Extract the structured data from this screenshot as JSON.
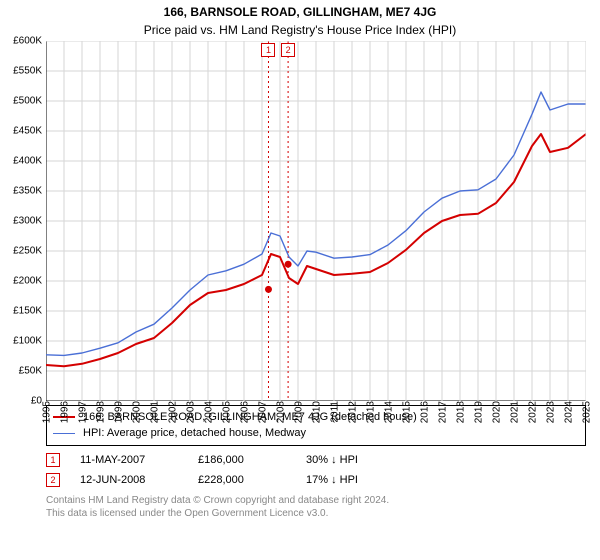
{
  "title": "166, BARNSOLE ROAD, GILLINGHAM, ME7 4JG",
  "subtitle": "Price paid vs. HM Land Registry's House Price Index (HPI)",
  "chart": {
    "type": "line",
    "background_color": "#ffffff",
    "grid_color": "#d6d6d6",
    "axis_color": "#000000",
    "font_size_axis": 10,
    "ylim": [
      0,
      600000
    ],
    "ytick_step": 50000,
    "y_labels": [
      "£0",
      "£50K",
      "£100K",
      "£150K",
      "£200K",
      "£250K",
      "£300K",
      "£350K",
      "£400K",
      "£450K",
      "£500K",
      "£550K",
      "£600K"
    ],
    "xlim": [
      1995,
      2025
    ],
    "x_labels": [
      "1995",
      "1996",
      "1997",
      "1998",
      "1999",
      "2000",
      "2001",
      "2002",
      "2003",
      "2004",
      "2005",
      "2006",
      "2007",
      "2008",
      "2009",
      "2010",
      "2011",
      "2012",
      "2013",
      "2014",
      "2015",
      "2016",
      "2017",
      "2018",
      "2019",
      "2020",
      "2021",
      "2022",
      "2023",
      "2024",
      "2025"
    ],
    "series": [
      {
        "key": "property",
        "label": "166, BARNSOLE ROAD, GILLINGHAM, ME7 4JG (detached house)",
        "color": "#d40000",
        "line_width": 2,
        "data": [
          [
            1995,
            60000
          ],
          [
            1996,
            58000
          ],
          [
            1997,
            62000
          ],
          [
            1998,
            70000
          ],
          [
            1999,
            80000
          ],
          [
            2000,
            95000
          ],
          [
            2001,
            105000
          ],
          [
            2002,
            130000
          ],
          [
            2003,
            160000
          ],
          [
            2004,
            180000
          ],
          [
            2005,
            185000
          ],
          [
            2006,
            195000
          ],
          [
            2007,
            210000
          ],
          [
            2007.5,
            245000
          ],
          [
            2008,
            240000
          ],
          [
            2008.5,
            205000
          ],
          [
            2009,
            195000
          ],
          [
            2009.5,
            225000
          ],
          [
            2010,
            220000
          ],
          [
            2011,
            210000
          ],
          [
            2012,
            212000
          ],
          [
            2013,
            215000
          ],
          [
            2014,
            230000
          ],
          [
            2015,
            252000
          ],
          [
            2016,
            280000
          ],
          [
            2017,
            300000
          ],
          [
            2018,
            310000
          ],
          [
            2019,
            312000
          ],
          [
            2020,
            330000
          ],
          [
            2021,
            365000
          ],
          [
            2022,
            425000
          ],
          [
            2022.5,
            445000
          ],
          [
            2023,
            415000
          ],
          [
            2024,
            422000
          ],
          [
            2025,
            445000
          ]
        ]
      },
      {
        "key": "hpi",
        "label": "HPI: Average price, detached house, Medway",
        "color": "#4a6fd6",
        "line_width": 1.4,
        "data": [
          [
            1995,
            77000
          ],
          [
            1996,
            76000
          ],
          [
            1997,
            80000
          ],
          [
            1998,
            88000
          ],
          [
            1999,
            97000
          ],
          [
            2000,
            115000
          ],
          [
            2001,
            128000
          ],
          [
            2002,
            155000
          ],
          [
            2003,
            185000
          ],
          [
            2004,
            210000
          ],
          [
            2005,
            217000
          ],
          [
            2006,
            228000
          ],
          [
            2007,
            245000
          ],
          [
            2007.5,
            280000
          ],
          [
            2008,
            275000
          ],
          [
            2008.5,
            240000
          ],
          [
            2009,
            225000
          ],
          [
            2009.5,
            250000
          ],
          [
            2010,
            248000
          ],
          [
            2011,
            238000
          ],
          [
            2012,
            240000
          ],
          [
            2013,
            244000
          ],
          [
            2014,
            260000
          ],
          [
            2015,
            284000
          ],
          [
            2016,
            315000
          ],
          [
            2017,
            338000
          ],
          [
            2018,
            350000
          ],
          [
            2019,
            352000
          ],
          [
            2020,
            370000
          ],
          [
            2021,
            410000
          ],
          [
            2022,
            478000
          ],
          [
            2022.5,
            515000
          ],
          [
            2023,
            485000
          ],
          [
            2024,
            495000
          ],
          [
            2025,
            495000
          ]
        ]
      }
    ],
    "markers": [
      {
        "num": "1",
        "x": 2007.36,
        "border": "#d40000",
        "dash_color": "#d40000"
      },
      {
        "num": "2",
        "x": 2008.45,
        "border": "#d40000",
        "dash_color": "#d40000"
      }
    ],
    "sale_points": [
      {
        "x": 2007.36,
        "y": 186000,
        "color": "#d40000"
      },
      {
        "x": 2008.45,
        "y": 228000,
        "color": "#d40000"
      }
    ]
  },
  "legend": {
    "items": [
      {
        "color": "#d40000",
        "width": 2,
        "label_key": "chart.series.0.label"
      },
      {
        "color": "#4a6fd6",
        "width": 1.4,
        "label_key": "chart.series.1.label"
      }
    ]
  },
  "sales": [
    {
      "num": "1",
      "border": "#d40000",
      "date": "11-MAY-2007",
      "price": "£186,000",
      "delta": "30% ↓ HPI"
    },
    {
      "num": "2",
      "border": "#d40000",
      "date": "12-JUN-2008",
      "price": "£228,000",
      "delta": "17% ↓ HPI"
    }
  ],
  "footnote": {
    "line1": "Contains HM Land Registry data © Crown copyright and database right 2024.",
    "line2": "This data is licensed under the Open Government Licence v3.0."
  }
}
